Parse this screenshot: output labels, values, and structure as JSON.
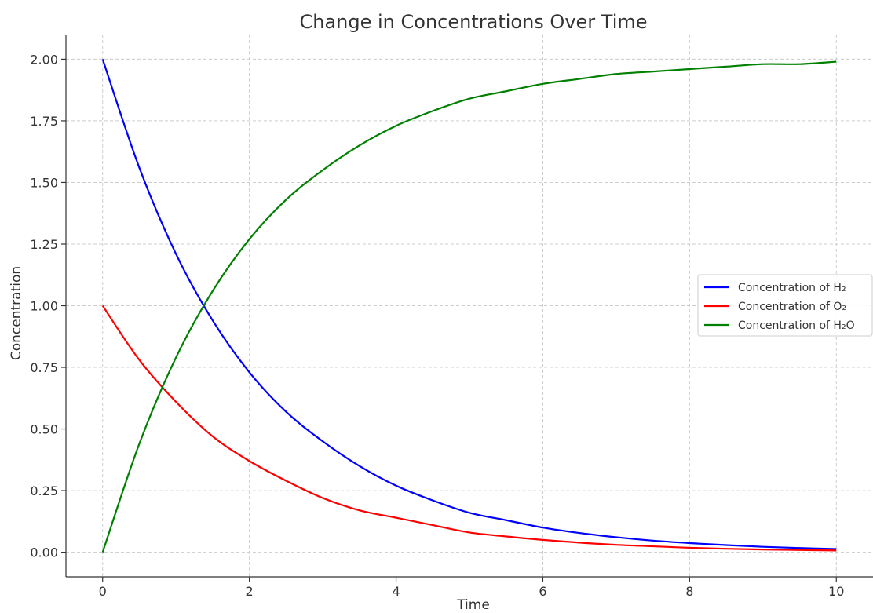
{
  "chart_data": {
    "type": "line",
    "title": "Change in Concentrations Over Time",
    "xlabel": "Time",
    "ylabel": "Concentration",
    "xlim": [
      -0.5,
      10.5
    ],
    "ylim": [
      -0.1,
      2.1
    ],
    "xticks": [
      0,
      2,
      4,
      6,
      8,
      10
    ],
    "xtick_labels": [
      "0",
      "2",
      "4",
      "6",
      "8",
      "10"
    ],
    "yticks": [
      0,
      0.25,
      0.5,
      0.75,
      1.0,
      1.25,
      1.5,
      1.75,
      2.0
    ],
    "ytick_labels": [
      "0.00",
      "0.25",
      "0.50",
      "0.75",
      "1.00",
      "1.25",
      "1.50",
      "1.75",
      "2.00"
    ],
    "grid": true,
    "legend_position": "center-right",
    "x": [
      0,
      0.5,
      1,
      1.5,
      2,
      2.5,
      3,
      3.5,
      4,
      4.5,
      5,
      5.5,
      6,
      6.5,
      7,
      7.5,
      8,
      8.5,
      9,
      9.5,
      10
    ],
    "series": [
      {
        "name": "Concentration of H₂",
        "color": "#0000ff",
        "values": [
          2.0,
          1.56,
          1.21,
          0.94,
          0.73,
          0.57,
          0.45,
          0.35,
          0.27,
          0.21,
          0.16,
          0.13,
          0.1,
          0.078,
          0.061,
          0.047,
          0.037,
          0.029,
          0.022,
          0.017,
          0.013
        ]
      },
      {
        "name": "Concentration of O₂",
        "color": "#ff0000",
        "values": [
          1.0,
          0.78,
          0.61,
          0.47,
          0.37,
          0.29,
          0.22,
          0.17,
          0.14,
          0.11,
          0.08,
          0.064,
          0.05,
          0.039,
          0.03,
          0.024,
          0.018,
          0.014,
          0.011,
          0.009,
          0.007
        ]
      },
      {
        "name": "Concentration of H₂O",
        "color": "#008000",
        "values": [
          0.0,
          0.44,
          0.79,
          1.06,
          1.27,
          1.43,
          1.55,
          1.65,
          1.73,
          1.79,
          1.84,
          1.87,
          1.9,
          1.92,
          1.94,
          1.95,
          1.96,
          1.97,
          1.98,
          1.98,
          1.99
        ]
      }
    ]
  }
}
